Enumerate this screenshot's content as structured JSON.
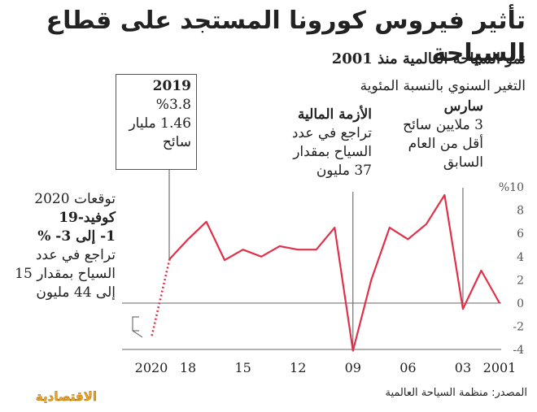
{
  "header": {
    "title": "تأثير فيروس كورونا المستجد على قطاع السياحة",
    "subtitle": "نمو السياحة العالمية منذ 2001",
    "ylabel": "التغير السنوي بالنسبة المئوية"
  },
  "annotations": {
    "box2019": {
      "year": "2019",
      "pct": "%3.8",
      "count": "1.46 مليار سائح"
    },
    "crisis": {
      "title": "الأزمة المالية",
      "body": "تراجع في عدد السياح بمقدار 37 مليون"
    },
    "march": {
      "title": "سارس",
      "body": "3 ملايين سائح أقل من العام السابق"
    },
    "forecast": {
      "l1": "توقعات 2020",
      "l2": "كوفيد-19",
      "l3": "1- إلى 3- %",
      "body": "تراجع في عدد السياح بمقدار 15 إلى 44 مليون"
    }
  },
  "footer": {
    "source": "المصدر: منظمة السياحة العالمية",
    "logo": "الاقتصادية"
  },
  "colors": {
    "line": "#e0304a",
    "axis": "#666666",
    "guide": "#555555"
  },
  "chart_data": {
    "type": "line",
    "x": [
      2001,
      2002,
      2003,
      2004,
      2005,
      2006,
      2007,
      2008,
      2009,
      2010,
      2011,
      2012,
      2013,
      2014,
      2015,
      2016,
      2017,
      2018,
      2019
    ],
    "values": [
      0,
      2.8,
      -0.5,
      9.3,
      6.8,
      5.5,
      6.5,
      2.0,
      -4.1,
      6.5,
      4.6,
      4.6,
      4.9,
      4.0,
      4.6,
      3.7,
      7.0,
      5.5,
      3.8
    ],
    "forecast": {
      "x": [
        2019,
        2020
      ],
      "values": [
        3.8,
        -3.0
      ]
    },
    "x_ticks": [
      {
        "value": 2001,
        "label": "2001"
      },
      {
        "value": 2003,
        "label": "03"
      },
      {
        "value": 2006,
        "label": "06"
      },
      {
        "value": 2009,
        "label": "09"
      },
      {
        "value": 2012,
        "label": "12"
      },
      {
        "value": 2015,
        "label": "15"
      },
      {
        "value": 2018,
        "label": "18"
      },
      {
        "value": 2020,
        "label": "2020"
      }
    ],
    "y_ticks": [
      {
        "value": 10,
        "label": "%10"
      },
      {
        "value": 8,
        "label": "8"
      },
      {
        "value": 6,
        "label": "6"
      },
      {
        "value": 4,
        "label": "4"
      },
      {
        "value": 2,
        "label": "2"
      },
      {
        "value": 0,
        "label": "0"
      },
      {
        "value": -2,
        "label": "-2"
      },
      {
        "value": -4,
        "label": "-4"
      }
    ],
    "ylim": [
      -4.5,
      10
    ],
    "xlim": [
      2020,
      2001
    ],
    "x_reversed": true,
    "grid": false
  }
}
